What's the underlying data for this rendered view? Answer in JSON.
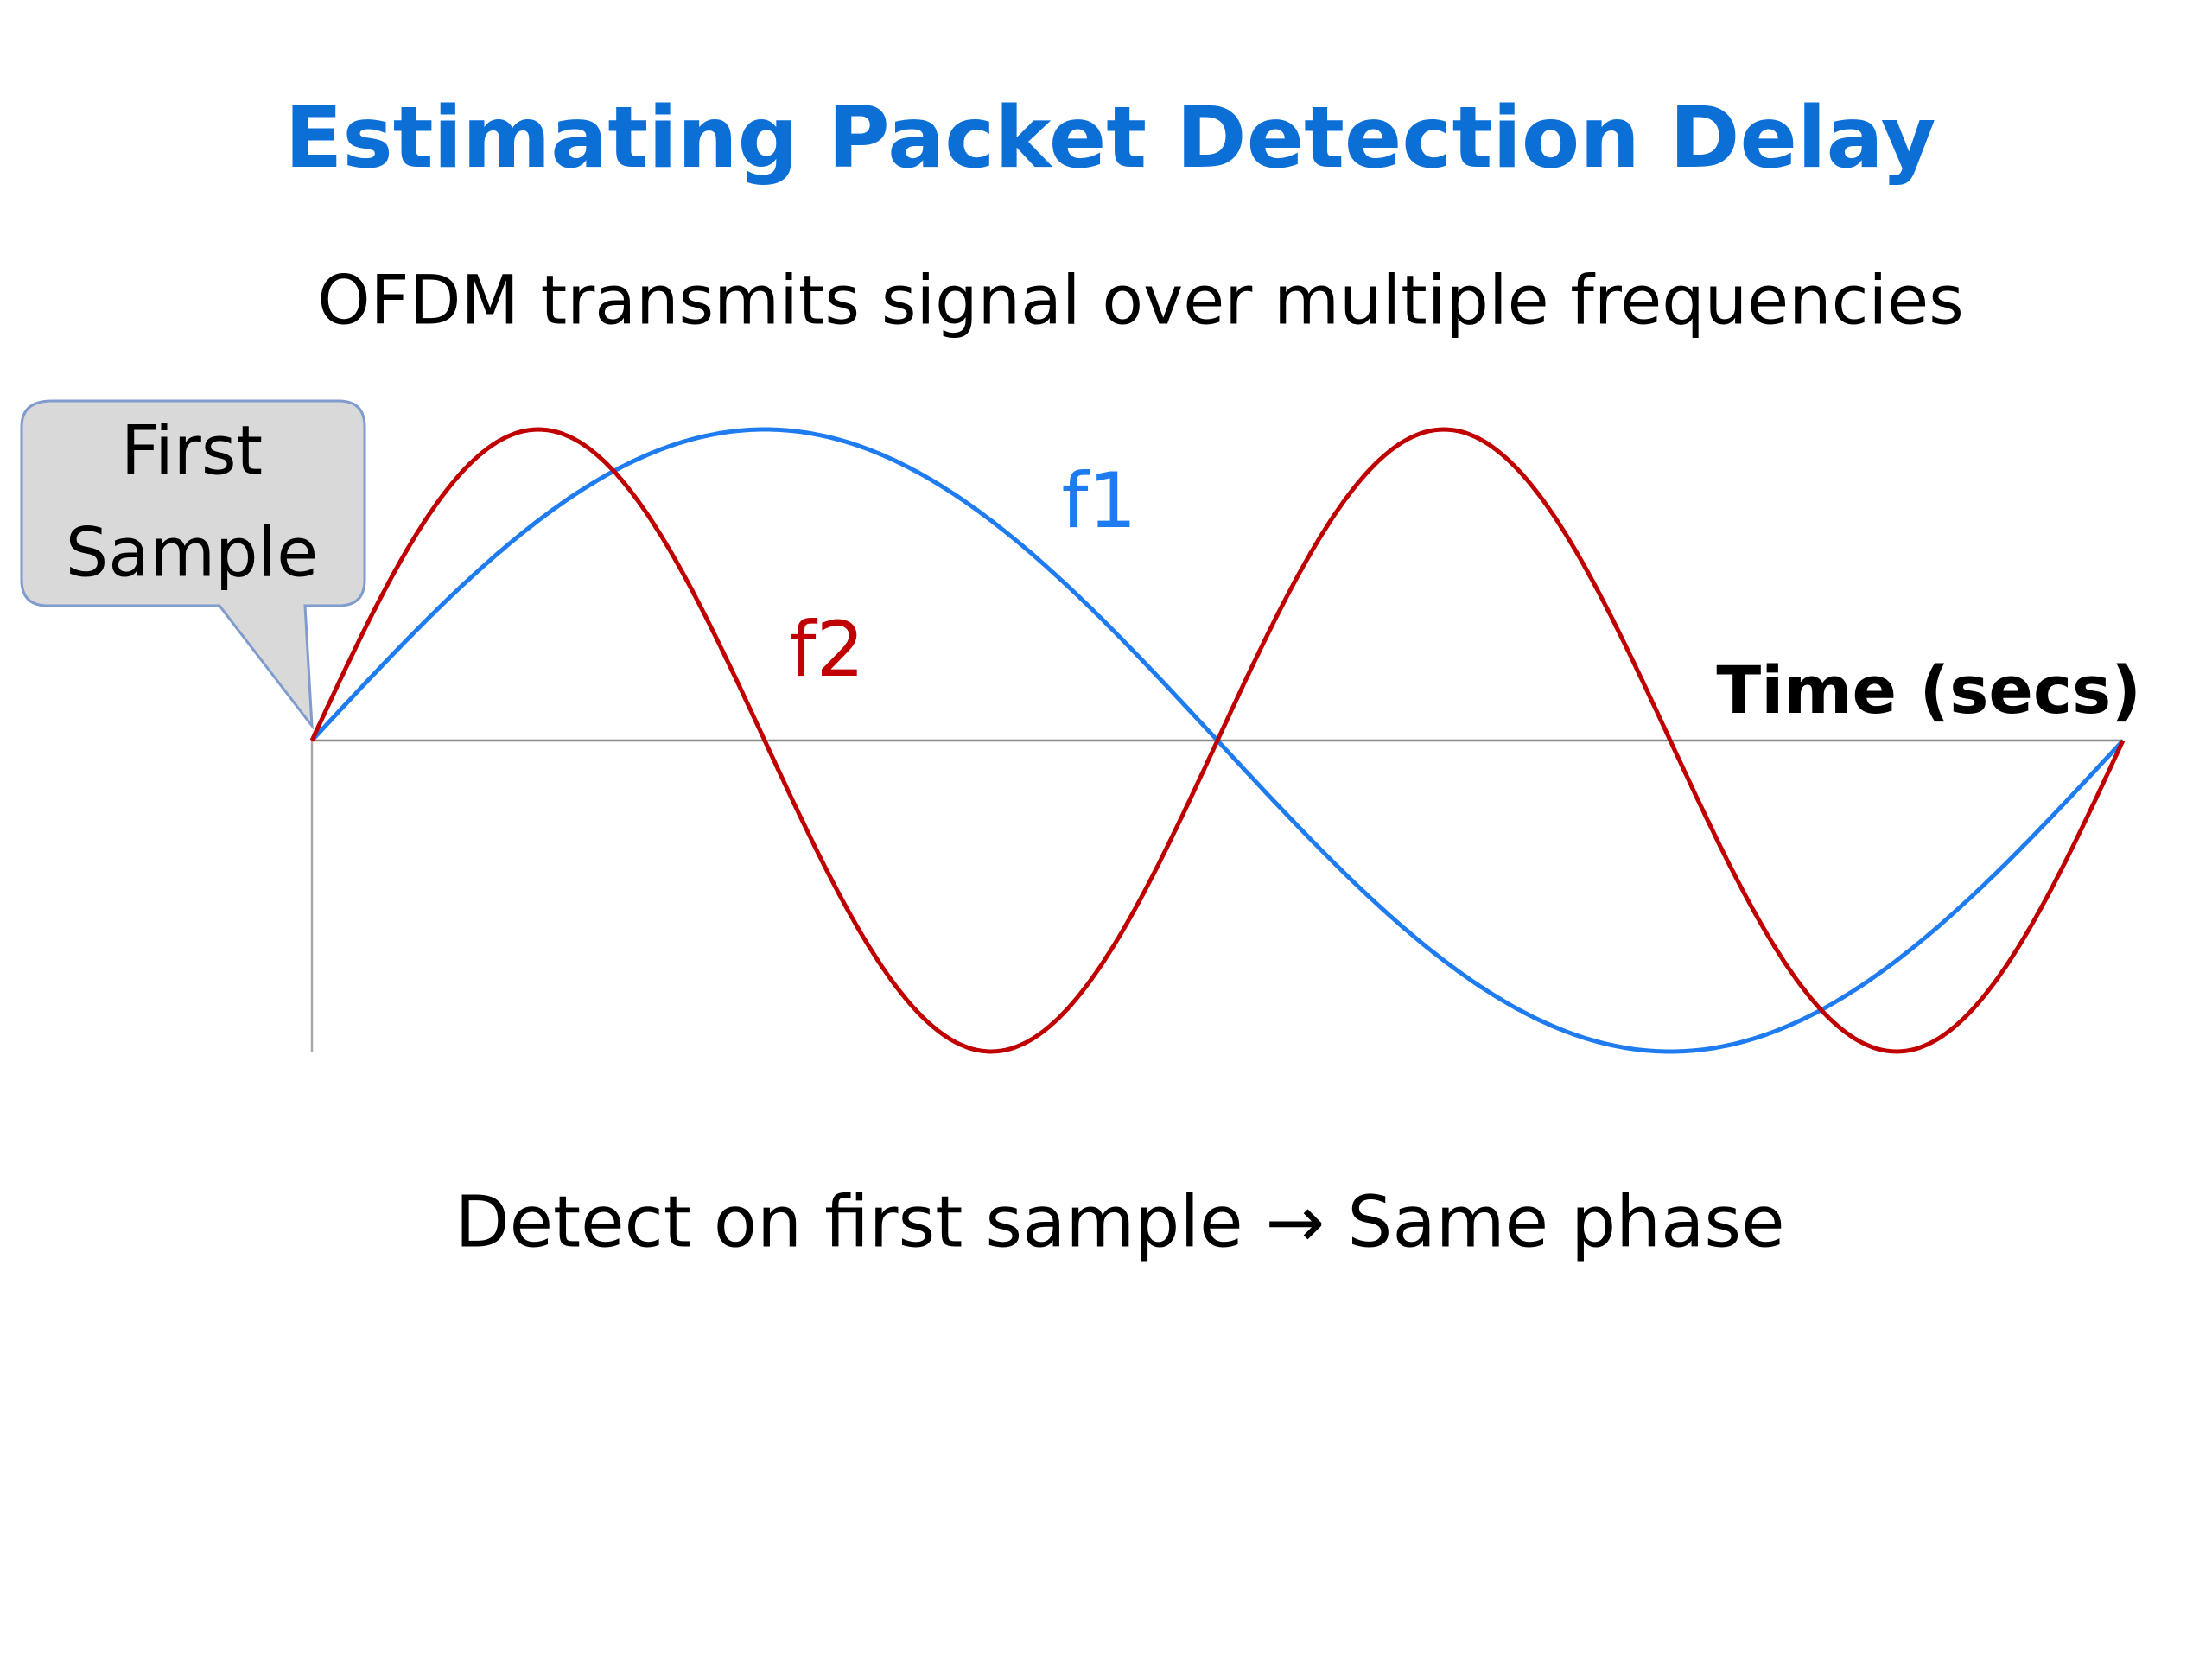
{
  "header": {
    "title": "Estimating Packet Detection Delay",
    "subtitle": "OFDM transmits signal over multiple frequencies"
  },
  "callout": {
    "lines": [
      "First",
      "Sample"
    ]
  },
  "curves": {
    "f1": "f1",
    "f2": "f2"
  },
  "axis": {
    "label": "Time (secs)"
  },
  "caption": "Detect on first sample → Same phase"
}
